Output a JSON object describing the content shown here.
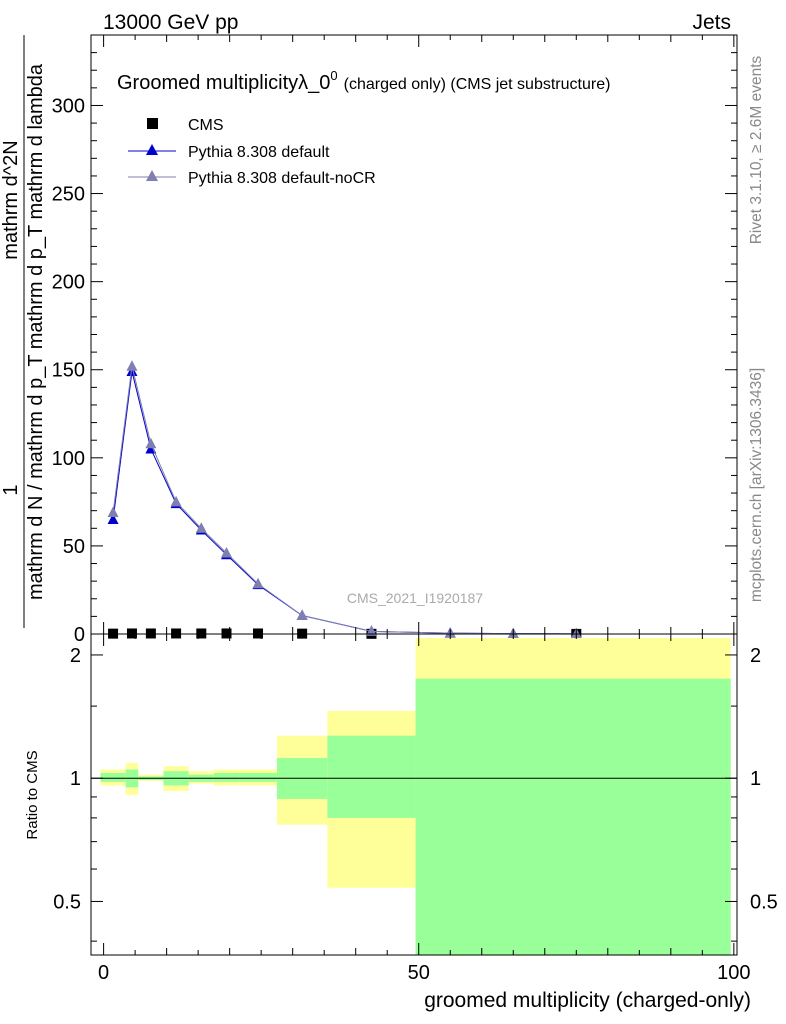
{
  "header": {
    "left": "13000 GeV pp",
    "right": "Jets"
  },
  "side_text": {
    "rivet": "Rivet 3.1.10, ≥ 2.6M events",
    "mcplots": "mcplots.cern.ch [arXiv:1306.3436]"
  },
  "chart_data": [
    {
      "type": "line",
      "title_main": "Groomed multiplicityλ_0",
      "title_sup": "0",
      "title_small": "(charged only) (CMS jet substructure)",
      "watermark": "CMS_2021_I1920187",
      "ylabel_lines": [
        "1",
        "mathrm d N / mathrm d p_T mathrm d p_T mathrm d lambda",
        "mathrm d^2N"
      ],
      "xlim": [
        -2,
        100.5
      ],
      "ylim": [
        0,
        340
      ],
      "yticks": [
        0,
        50,
        100,
        150,
        200,
        250,
        300
      ],
      "legend_position": "top-left",
      "series": [
        {
          "name": "CMS",
          "marker": "square",
          "color": "#000000",
          "x": [
            1.5,
            4.5,
            7.5,
            11.5,
            15.5,
            19.5,
            24.5,
            31.5,
            42.5,
            75
          ],
          "y": [
            0.2,
            0.3,
            0.3,
            0.3,
            0.3,
            0.3,
            0.3,
            0.2,
            0.1,
            0.05
          ]
        },
        {
          "name": "Pythia 8.308 default",
          "marker": "triangle",
          "color": "#0000cc",
          "x": [
            1.5,
            4.5,
            7.5,
            11.5,
            15.5,
            19.5,
            24.5,
            31.5,
            42.5,
            55,
            65,
            75
          ],
          "y": [
            65,
            149,
            105,
            74,
            59,
            45,
            28,
            10.5,
            1.5,
            0.5,
            0.2,
            0.05
          ]
        },
        {
          "name": "Pythia 8.308 default-noCR",
          "marker": "triangle",
          "color": "#7f7fb2",
          "x": [
            1.5,
            4.5,
            7.5,
            11.5,
            15.5,
            19.5,
            24.5,
            31.5,
            42.5,
            55,
            65,
            75
          ],
          "y": [
            69,
            152,
            108,
            75,
            60,
            46,
            28.5,
            10.5,
            1.5,
            0.5,
            0.2,
            0.05
          ]
        }
      ]
    },
    {
      "type": "area",
      "ylabel": "Ratio to CMS",
      "xlabel": "groomed multiplicity (charged-only)",
      "scale": "log",
      "ylim": [
        0.37,
        2.25
      ],
      "yticks": [
        0.5,
        1,
        2
      ],
      "xlim": [
        -2,
        100.5
      ],
      "xticks": [
        0,
        50,
        100
      ],
      "reference_line": 1,
      "bands": [
        {
          "x0": -0.5,
          "x1": 3.5,
          "yellow": [
            0.96,
            1.05
          ],
          "green": [
            0.98,
            1.03
          ]
        },
        {
          "x0": 3.5,
          "x1": 5.5,
          "yellow": [
            0.91,
            1.09
          ],
          "green": [
            0.95,
            1.05
          ]
        },
        {
          "x0": 5.5,
          "x1": 9.5,
          "yellow": [
            0.985,
            1.02
          ],
          "green": [
            0.99,
            1.01
          ]
        },
        {
          "x0": 9.5,
          "x1": 13.5,
          "yellow": [
            0.93,
            1.07
          ],
          "green": [
            0.96,
            1.04
          ]
        },
        {
          "x0": 13.5,
          "x1": 17.5,
          "yellow": [
            0.97,
            1.04
          ],
          "green": [
            0.98,
            1.02
          ]
        },
        {
          "x0": 17.5,
          "x1": 21.5,
          "yellow": [
            0.96,
            1.05
          ],
          "green": [
            0.98,
            1.03
          ]
        },
        {
          "x0": 21.5,
          "x1": 27.5,
          "yellow": [
            0.96,
            1.05
          ],
          "green": [
            0.98,
            1.03
          ]
        },
        {
          "x0": 27.5,
          "x1": 35.5,
          "yellow": [
            0.77,
            1.27
          ],
          "green": [
            0.89,
            1.12
          ]
        },
        {
          "x0": 35.5,
          "x1": 49.5,
          "yellow": [
            0.54,
            1.46
          ],
          "green": [
            0.8,
            1.27
          ]
        },
        {
          "x0": 49.5,
          "x1": 99.5,
          "yellow": [
            0.37,
            2.2
          ],
          "green": [
            0.37,
            1.75
          ]
        }
      ]
    }
  ]
}
